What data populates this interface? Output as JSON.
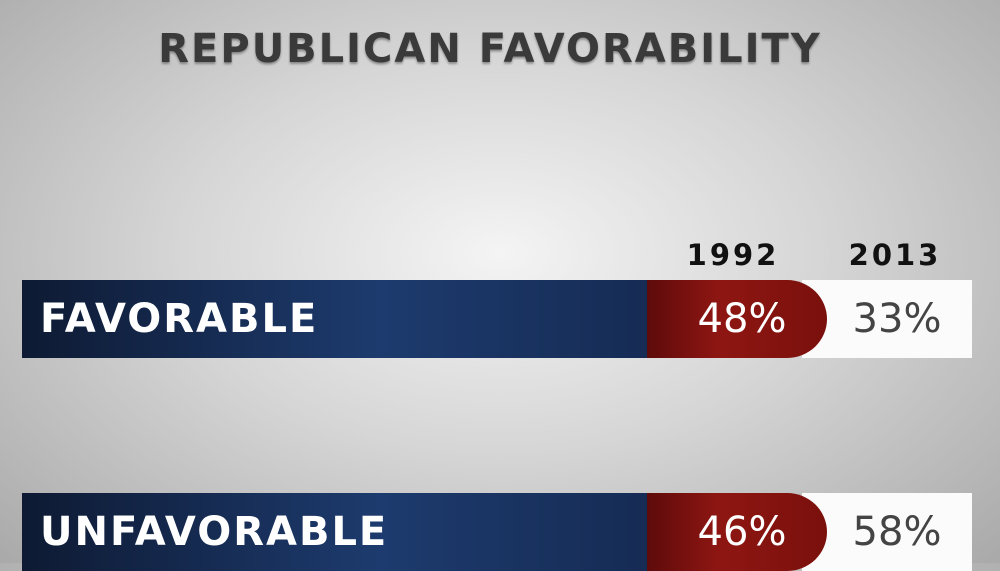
{
  "title": "REPUBLICAN FAVORABILITY",
  "columns": [
    "1992",
    "2013"
  ],
  "rows": [
    {
      "label": "FAVORABLE",
      "values": [
        "48%",
        "33%"
      ]
    },
    {
      "label": "UNFAVORABLE",
      "values": [
        "46%",
        "58%"
      ]
    }
  ]
}
